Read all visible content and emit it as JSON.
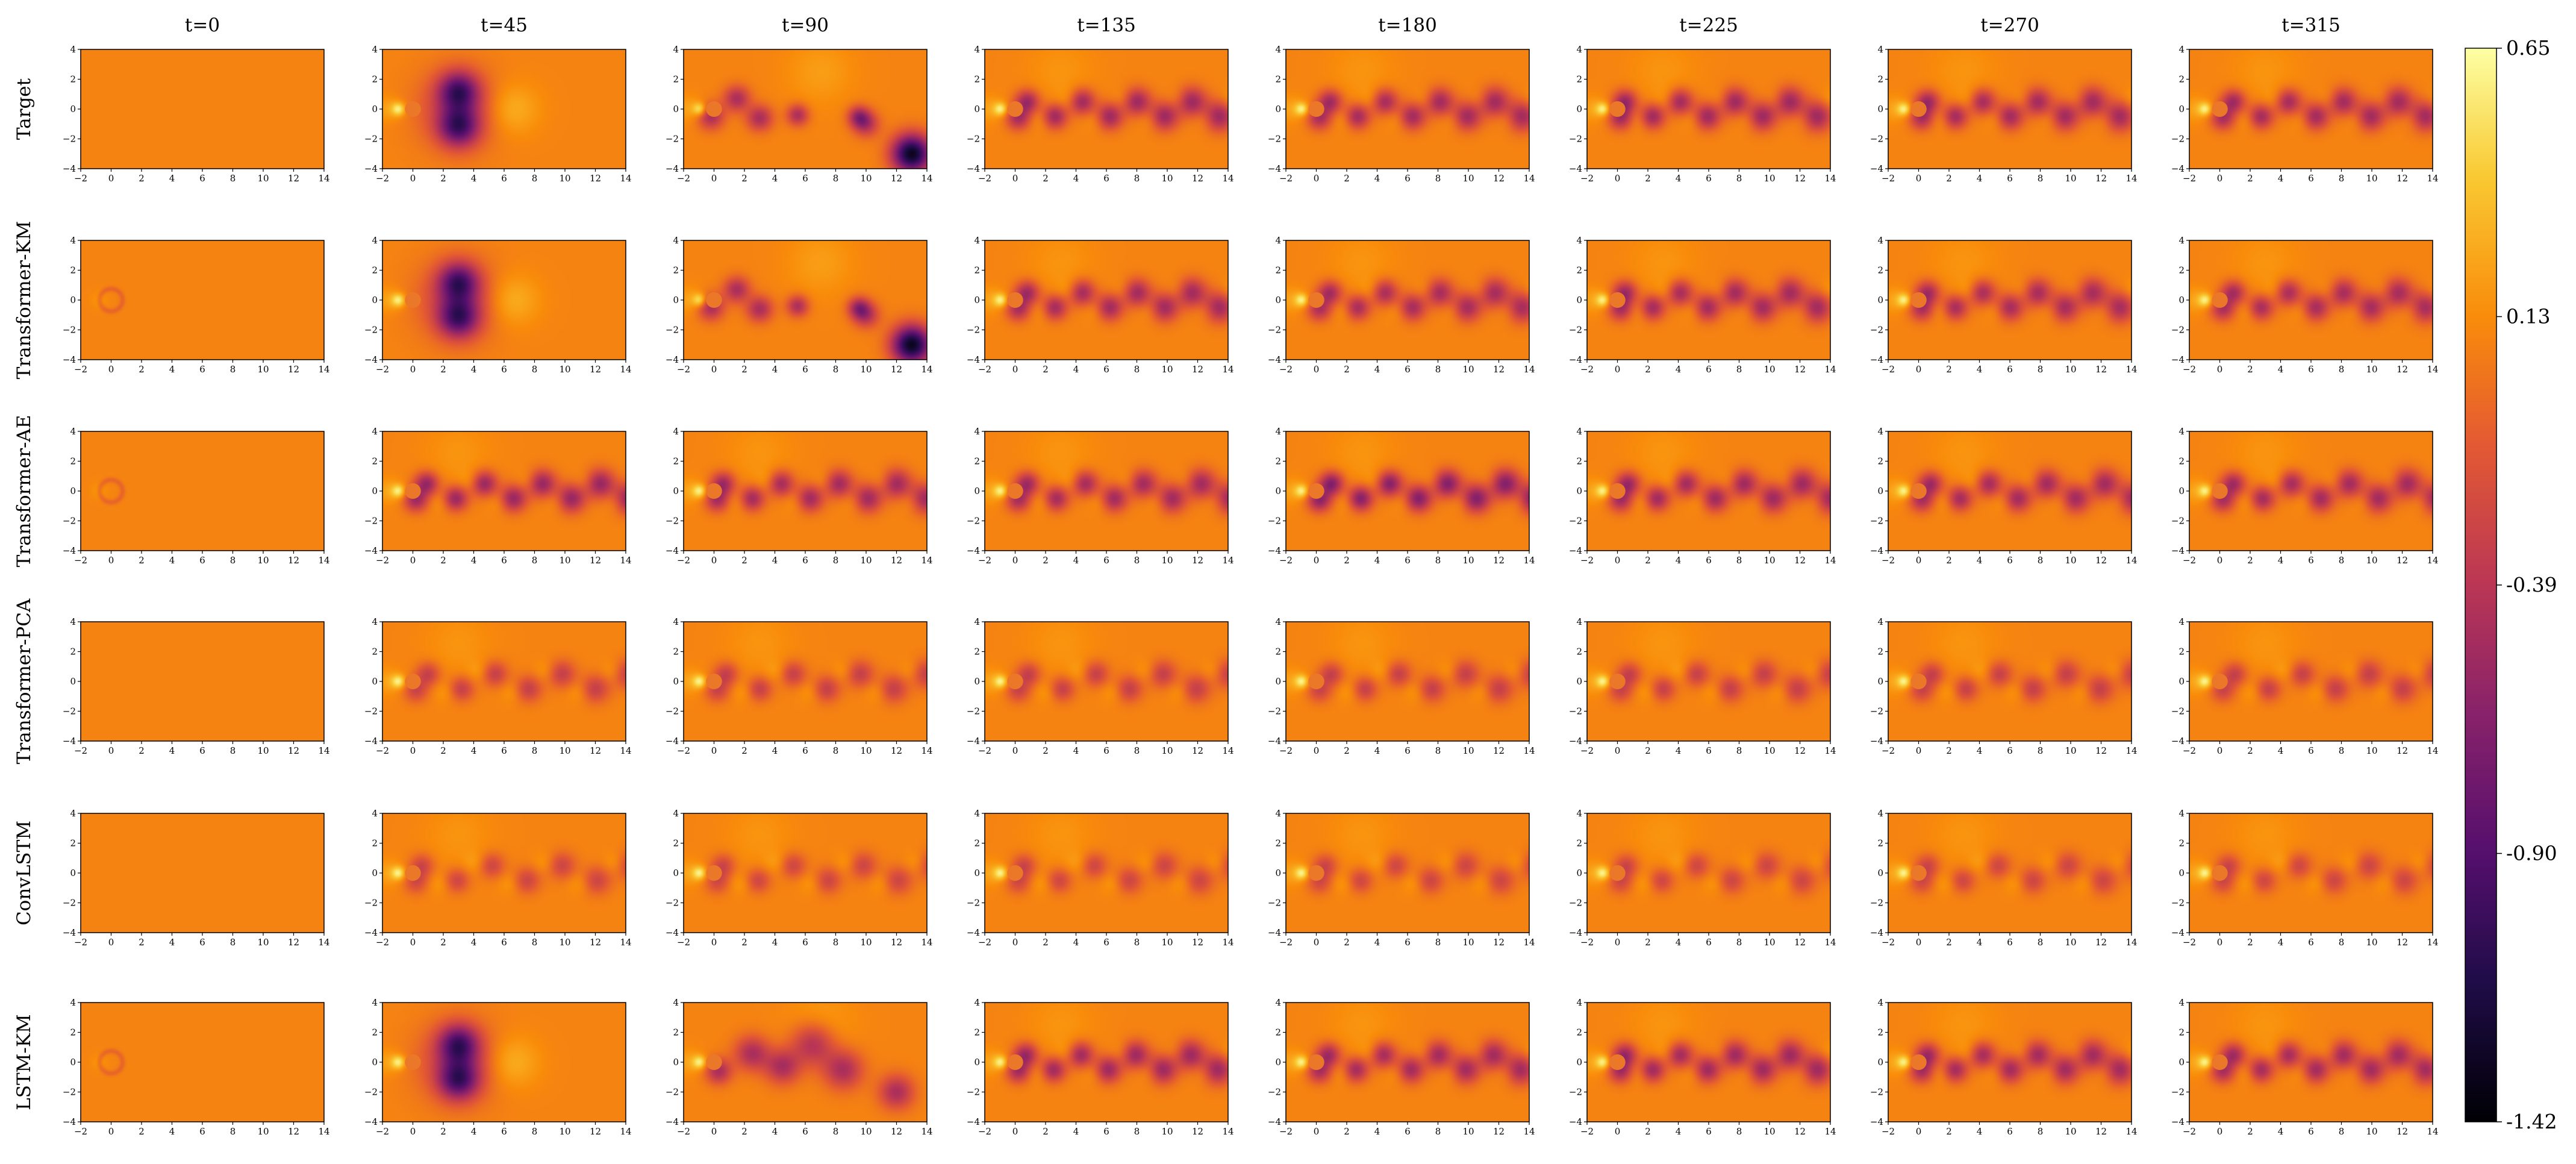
{
  "chart_data": {
    "type": "heatmap",
    "description_fields_note": "",
    "time_steps": [
      "t=0",
      "t=45",
      "t=90",
      "t=135",
      "t=180",
      "t=225",
      "t=270",
      "t=315"
    ],
    "models": [
      "Target",
      "Transformer-KM",
      "Transformer-AE",
      "Transformer-PCA",
      "ConvLSTM",
      "LSTM-KM"
    ],
    "x_ticks": [
      "−2",
      "0",
      "2",
      "4",
      "6",
      "8",
      "10",
      "12",
      "14"
    ],
    "y_ticks": [
      "4",
      "2",
      "0",
      "−2",
      "−4"
    ],
    "xlim": [
      -2,
      14
    ],
    "ylim": [
      -4,
      4
    ],
    "cylinder": {
      "center": [
        0,
        0
      ],
      "radius": 0.5
    },
    "colormap": "inferno",
    "colorbar": {
      "range": [
        -1.42,
        0.65
      ],
      "ticks": [
        "0.65",
        "0.13",
        "-0.39",
        "-0.90",
        "-1.42"
      ]
    },
    "fields": [
      [
        {
          "kind": "uniform"
        },
        {
          "kind": "large",
          "lx": 3.0,
          "amp": 0.85
        },
        {
          "kind": "mixed",
          "vort": [
            [
              -0.2,
              -0.5,
              0.6
            ],
            [
              1.5,
              0.7,
              0.6
            ],
            [
              3.0,
              -0.6,
              0.6
            ],
            [
              5.5,
              -0.4,
              0.5
            ],
            [
              9.5,
              -0.5,
              0.5
            ]
          ],
          "dark": [
            [
              13.0,
              -3.0,
              0.9,
              1.4
            ],
            [
              10.0,
              -1.0,
              0.6,
              0.5
            ]
          ]
        },
        {
          "kind": "street",
          "x0": 0.8,
          "spacing": 1.8,
          "amp": 0.62,
          "count": 8
        },
        {
          "kind": "street",
          "x0": 0.9,
          "spacing": 1.8,
          "amp": 0.6,
          "count": 8
        },
        {
          "kind": "street",
          "x0": 0.5,
          "spacing": 1.8,
          "amp": 0.62,
          "count": 8
        },
        {
          "kind": "street",
          "x0": 0.6,
          "spacing": 1.8,
          "amp": 0.6,
          "count": 8
        },
        {
          "kind": "street",
          "x0": 0.9,
          "spacing": 1.8,
          "amp": 0.6,
          "count": 8
        }
      ],
      [
        {
          "kind": "ghost"
        },
        {
          "kind": "large",
          "lx": 3.0,
          "amp": 0.85
        },
        {
          "kind": "mixed",
          "vort": [
            [
              -0.2,
              -0.5,
              0.6
            ],
            [
              1.5,
              0.7,
              0.6
            ],
            [
              3.0,
              -0.6,
              0.6
            ],
            [
              5.5,
              -0.4,
              0.5
            ],
            [
              9.5,
              -0.5,
              0.5
            ]
          ],
          "dark": [
            [
              13.0,
              -3.0,
              0.9,
              1.4
            ],
            [
              10.0,
              -1.0,
              0.6,
              0.5
            ]
          ]
        },
        {
          "kind": "street",
          "x0": 0.8,
          "spacing": 1.8,
          "amp": 0.6,
          "count": 8
        },
        {
          "kind": "street",
          "x0": 0.9,
          "spacing": 1.8,
          "amp": 0.58,
          "count": 8
        },
        {
          "kind": "street",
          "x0": 0.5,
          "spacing": 1.8,
          "amp": 0.6,
          "count": 8
        },
        {
          "kind": "street",
          "x0": 0.6,
          "spacing": 1.8,
          "amp": 0.58,
          "count": 8
        },
        {
          "kind": "street",
          "x0": 0.9,
          "spacing": 1.8,
          "amp": 0.58,
          "count": 8
        }
      ],
      [
        {
          "kind": "ghost"
        },
        {
          "kind": "street",
          "x0": 0.9,
          "spacing": 1.9,
          "amp": 0.65,
          "count": 8
        },
        {
          "kind": "street",
          "x0": 0.6,
          "spacing": 1.9,
          "amp": 0.6,
          "count": 8
        },
        {
          "kind": "street",
          "x0": 0.8,
          "spacing": 1.9,
          "amp": 0.6,
          "count": 8
        },
        {
          "kind": "street",
          "x0": 1.0,
          "spacing": 1.9,
          "amp": 0.75,
          "count": 8
        },
        {
          "kind": "street",
          "x0": 0.7,
          "spacing": 1.9,
          "amp": 0.62,
          "count": 8
        },
        {
          "kind": "street",
          "x0": 0.8,
          "spacing": 1.9,
          "amp": 0.6,
          "count": 8
        },
        {
          "kind": "street",
          "x0": 0.9,
          "spacing": 1.9,
          "amp": 0.6,
          "count": 8
        }
      ],
      [
        {
          "kind": "uniform"
        },
        {
          "kind": "street",
          "x0": 1.0,
          "spacing": 2.2,
          "amp": 0.4,
          "count": 7
        },
        {
          "kind": "street",
          "x0": 0.8,
          "spacing": 2.2,
          "amp": 0.4,
          "count": 7
        },
        {
          "kind": "street",
          "x0": 0.9,
          "spacing": 2.2,
          "amp": 0.4,
          "count": 7
        },
        {
          "kind": "street",
          "x0": 1.0,
          "spacing": 2.2,
          "amp": 0.4,
          "count": 7
        },
        {
          "kind": "street",
          "x0": 0.8,
          "spacing": 2.2,
          "amp": 0.4,
          "count": 7
        },
        {
          "kind": "street",
          "x0": 0.9,
          "spacing": 2.2,
          "amp": 0.4,
          "count": 7
        },
        {
          "kind": "street",
          "x0": 1.0,
          "spacing": 2.2,
          "amp": 0.4,
          "count": 7
        }
      ],
      [
        {
          "kind": "uniform"
        },
        {
          "kind": "street",
          "x0": 0.6,
          "spacing": 2.3,
          "amp": 0.35,
          "count": 7
        },
        {
          "kind": "street",
          "x0": 0.6,
          "spacing": 2.3,
          "amp": 0.35,
          "count": 7
        },
        {
          "kind": "street",
          "x0": 0.6,
          "spacing": 2.3,
          "amp": 0.35,
          "count": 7
        },
        {
          "kind": "street",
          "x0": 0.6,
          "spacing": 2.3,
          "amp": 0.35,
          "count": 7
        },
        {
          "kind": "street",
          "x0": 0.6,
          "spacing": 2.3,
          "amp": 0.35,
          "count": 7
        },
        {
          "kind": "street",
          "x0": 0.6,
          "spacing": 2.3,
          "amp": 0.35,
          "count": 7
        },
        {
          "kind": "street",
          "x0": 0.6,
          "spacing": 2.3,
          "amp": 0.35,
          "count": 7
        }
      ],
      [
        {
          "kind": "ghost"
        },
        {
          "kind": "large",
          "lx": 3.0,
          "amp": 0.85
        },
        {
          "kind": "mixed",
          "vort": [
            [
              0.3,
              -0.6,
              0.6
            ],
            [
              2.5,
              0.6,
              0.8
            ],
            [
              4.5,
              -0.3,
              0.8
            ],
            [
              6.5,
              1.2,
              1.0
            ],
            [
              8.5,
              -0.5,
              0.9
            ],
            [
              12.0,
              -2.0,
              0.8
            ]
          ],
          "dark": []
        },
        {
          "kind": "street",
          "x0": 0.7,
          "spacing": 1.8,
          "amp": 0.62,
          "count": 8
        },
        {
          "kind": "street",
          "x0": 0.8,
          "spacing": 1.8,
          "amp": 0.6,
          "count": 8
        },
        {
          "kind": "street",
          "x0": 0.5,
          "spacing": 1.8,
          "amp": 0.62,
          "count": 8
        },
        {
          "kind": "street",
          "x0": 0.6,
          "spacing": 1.8,
          "amp": 0.6,
          "count": 8
        },
        {
          "kind": "street",
          "x0": 0.9,
          "spacing": 1.8,
          "amp": 0.6,
          "count": 8
        }
      ]
    ]
  }
}
